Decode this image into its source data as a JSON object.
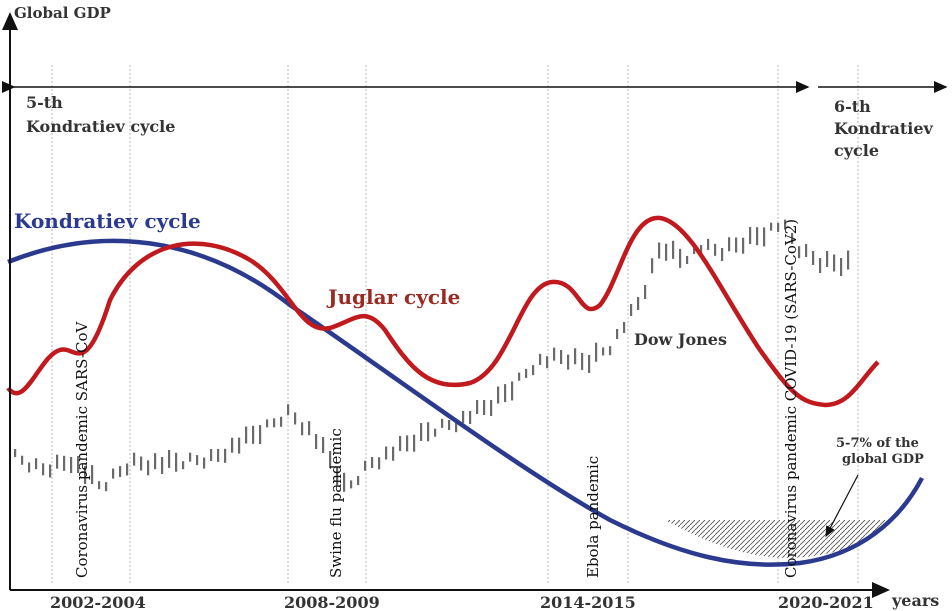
{
  "axes": {
    "y_label": "Global GDP",
    "x_label": "years"
  },
  "periods": [
    {
      "label": "5-th",
      "label2": "Kondratiev cycle"
    },
    {
      "label": "6-th",
      "label2": "Kondratiev",
      "label3": "cycle"
    }
  ],
  "curves": {
    "kondratiev": {
      "label": "Kondratiev cycle",
      "color": "#2b3a8f"
    },
    "juglar": {
      "label": "Juglar cycle",
      "color": "#c0191e"
    },
    "dow": {
      "label": "Dow Jones",
      "color": "#666666"
    }
  },
  "pandemics": [
    {
      "label": "Coronavirus pandemic SARS-CoV"
    },
    {
      "label": "Swine flu pandemic"
    },
    {
      "label": "Ebola pandemic"
    },
    {
      "label": "Coronavirus pandemic COVID-19 (SARS-CoV2)"
    }
  ],
  "x_ticks": [
    "2002-2004",
    "2008-2009",
    "2014-2015",
    "2020-2021"
  ],
  "gdp_loss": {
    "line1": "5-7% of the",
    "line2": "global GDP"
  }
}
